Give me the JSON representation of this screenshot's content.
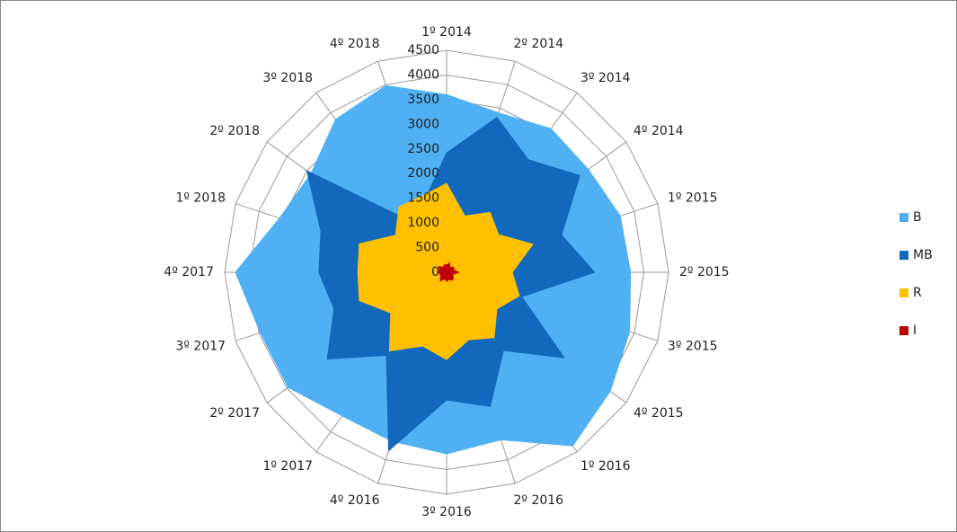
{
  "chart_data": {
    "type": "radar",
    "categories": [
      "1º 2014",
      "2º 2014",
      "3º 2014",
      "4º 2014",
      "1º 2015",
      "2º 2015",
      "3º 2015",
      "4º 2015",
      "1º 2016",
      "2º 2016",
      "3º 2016",
      "4º 2016",
      "1º 2017",
      "2º 2017",
      "3º 2017",
      "4º 2017",
      "1º 2018",
      "2º 2018",
      "3º 2018",
      "4º 2018"
    ],
    "series": [
      {
        "name": "B",
        "color": "#4fb1f3",
        "values": [
          3600,
          3400,
          3600,
          3550,
          3700,
          3730,
          3900,
          4100,
          4350,
          3570,
          3680,
          3600,
          3600,
          3970,
          3970,
          4280,
          3560,
          3400,
          3830,
          3980
        ]
      },
      {
        "name": "MB",
        "color": "#1268bd",
        "values": [
          2420,
          3300,
          2820,
          3340,
          2450,
          3000,
          1600,
          2950,
          1960,
          2860,
          2590,
          3800,
          2080,
          2990,
          2400,
          2590,
          2680,
          3500,
          1300,
          1500
        ]
      },
      {
        "name": "R",
        "color": "#ffc000",
        "values": [
          1800,
          1200,
          1500,
          1300,
          1840,
          1330,
          1550,
          1260,
          1640,
          1440,
          1770,
          1570,
          1970,
          1400,
          1860,
          1800,
          1860,
          1280,
          1640,
          1620
        ]
      },
      {
        "name": "I",
        "color": "#c00000",
        "values": [
          150,
          200,
          120,
          180,
          150,
          250,
          130,
          170,
          200,
          150,
          180,
          140,
          220,
          150,
          130,
          170,
          150,
          200,
          120,
          160
        ]
      }
    ],
    "ylim": [
      0,
      4500
    ],
    "yticks": [
      0,
      500,
      1000,
      1500,
      2000,
      2500,
      3000,
      3500,
      4000,
      4500
    ],
    "grid": true,
    "legend": "right"
  }
}
